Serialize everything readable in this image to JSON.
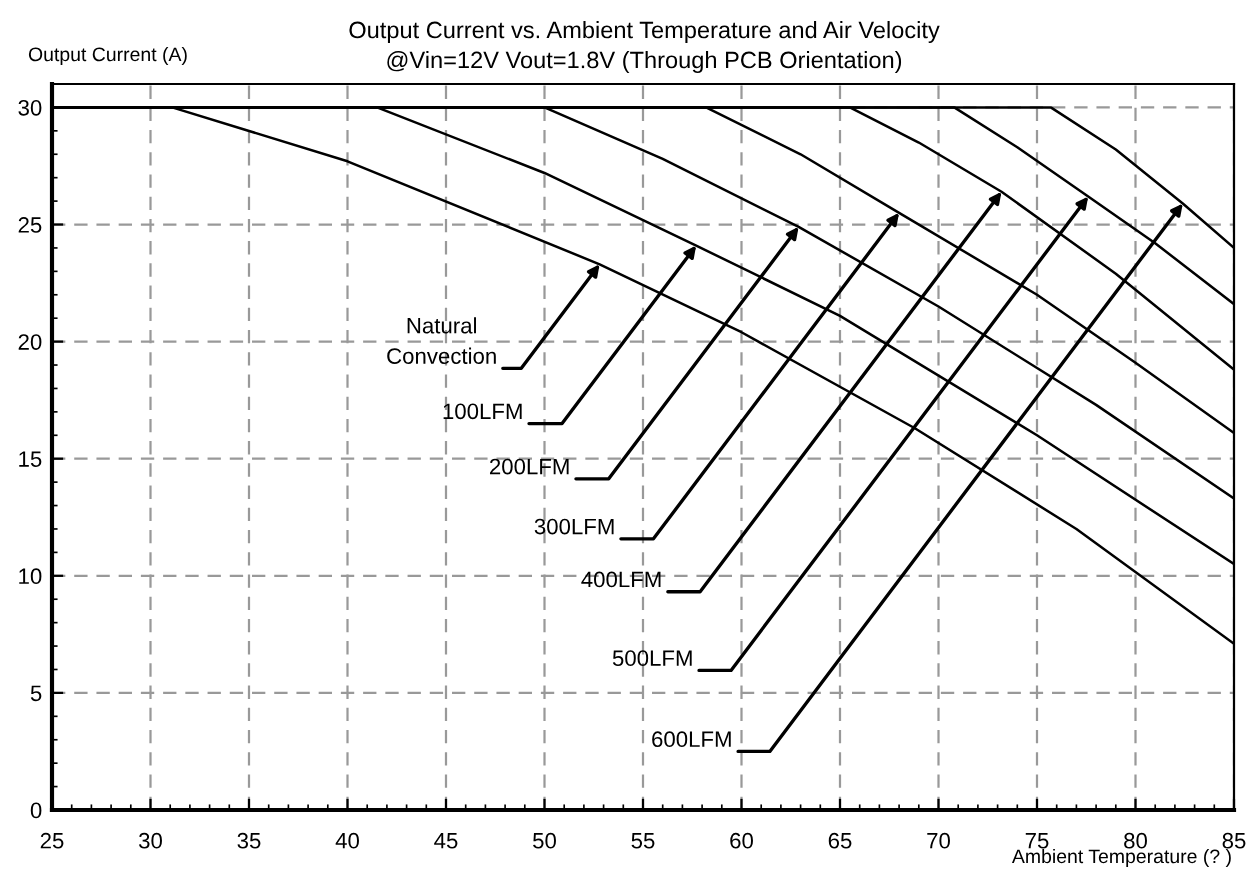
{
  "chart_data": {
    "type": "line",
    "title": "Output Current vs. Ambient Temperature and Air Velocity",
    "subtitle": "@Vin=12V Vout=1.8V (Through PCB Orientation)",
    "xlabel": "Ambient Temperature (? )",
    "ylabel": "Output Current (A)",
    "xlim": [
      25,
      85
    ],
    "xticks": [
      25,
      30,
      35,
      40,
      45,
      50,
      55,
      60,
      65,
      70,
      75,
      80,
      85
    ],
    "ylim": [
      0,
      31
    ],
    "yticks": [
      0,
      5,
      10,
      15,
      20,
      25,
      30
    ],
    "grid": true,
    "line_style": "solid",
    "marker": "none",
    "series": [
      {
        "color": "#000000",
        "x": [
          25,
          31.1,
          40,
          52.8,
          60,
          68.8,
          77,
          85
        ],
        "values": [
          30,
          30,
          27.7,
          23.3,
          20.4,
          16.3,
          12.0,
          7.1
        ]
      },
      {
        "color": "#000000",
        "x": [
          25,
          41.5,
          50,
          57.7,
          65,
          75,
          85
        ],
        "values": [
          30,
          30,
          27.2,
          24.1,
          21.1,
          16.0,
          10.5
        ]
      },
      {
        "color": "#000000",
        "x": [
          25,
          50,
          56,
          62.9,
          70,
          78,
          85
        ],
        "values": [
          30,
          30,
          27.8,
          24.9,
          21.5,
          17.3,
          13.3
        ]
      },
      {
        "color": "#000000",
        "x": [
          25,
          58.2,
          63,
          68,
          75,
          80,
          85
        ],
        "values": [
          30,
          30,
          28.0,
          25.5,
          22.0,
          19.1,
          16.1
        ]
      },
      {
        "color": "#000000",
        "x": [
          25,
          65.5,
          69,
          73.2,
          79,
          85
        ],
        "values": [
          30,
          30,
          28.5,
          26.4,
          22.9,
          18.8
        ]
      },
      {
        "color": "#000000",
        "x": [
          25,
          70.8,
          74,
          77.6,
          81,
          85
        ],
        "values": [
          30,
          30,
          28.3,
          26.2,
          24.2,
          21.6
        ]
      },
      {
        "color": "#000000",
        "x": [
          25,
          75.7,
          79,
          82.4,
          85
        ],
        "values": [
          30,
          30,
          28.2,
          25.9,
          24.0
        ]
      }
    ],
    "annotations": [
      {
        "text": "Natural\nConvection",
        "x": 52.8,
        "y": 23.3
      },
      {
        "text": "100LFM",
        "x": 57.7,
        "y": 24.1
      },
      {
        "text": "200LFM",
        "x": 62.9,
        "y": 24.9
      },
      {
        "text": "300LFM",
        "x": 68.0,
        "y": 25.5
      },
      {
        "text": "400LFM",
        "x": 73.2,
        "y": 26.4
      },
      {
        "text": "500LFM",
        "x": 77.6,
        "y": 26.2
      },
      {
        "text": "600LFM",
        "x": 82.4,
        "y": 25.9
      }
    ]
  }
}
